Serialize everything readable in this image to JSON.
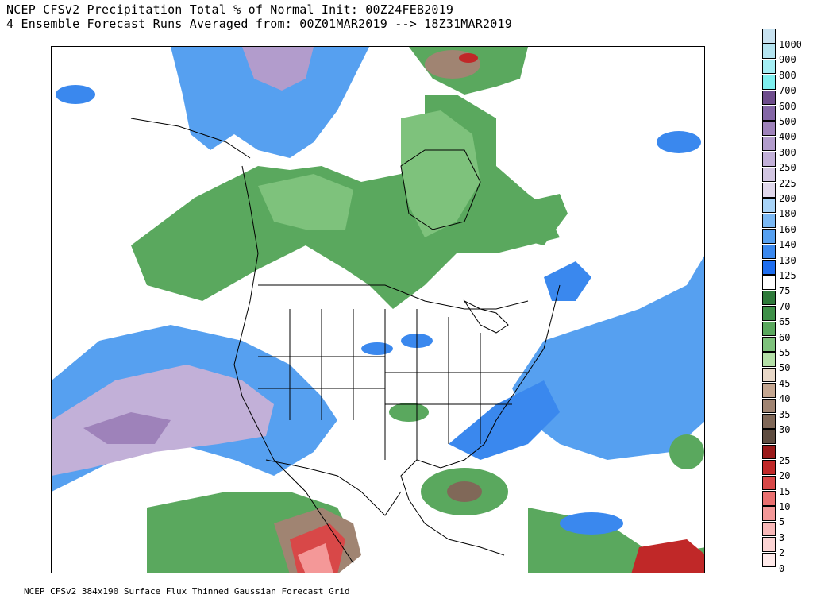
{
  "header": {
    "title_line1": "NCEP CFSv2 Precipitation Total % of Normal Init: 00Z24FEB2019",
    "title_line2": "4 Ensemble Forecast Runs Averaged from: 00Z01MAR2019 --> 18Z31MAR2019"
  },
  "footer": {
    "text": "NCEP CFSv2 384x190 Surface Flux Thinned Gaussian Forecast Grid"
  },
  "colorbar": {
    "levels": [
      {
        "label": "1000",
        "color": "#c8e2f0"
      },
      {
        "label": "900",
        "color": "#b4e4f0"
      },
      {
        "label": "800",
        "color": "#a4eef4"
      },
      {
        "label": "700",
        "color": "#7ef0f0"
      },
      {
        "label": "600",
        "color": "#6e4c8c"
      },
      {
        "label": "500",
        "color": "#8466a6"
      },
      {
        "label": "400",
        "color": "#9e82ba"
      },
      {
        "label": "300",
        "color": "#b29ccc"
      },
      {
        "label": "250",
        "color": "#c2b0d8"
      },
      {
        "label": "225",
        "color": "#d2c6e2"
      },
      {
        "label": "200",
        "color": "#e0d8ec"
      },
      {
        "label": "180",
        "color": "#a8d4f8"
      },
      {
        "label": "160",
        "color": "#7ab8f4"
      },
      {
        "label": "140",
        "color": "#56a0f0"
      },
      {
        "label": "130",
        "color": "#3a88ee"
      },
      {
        "label": "125",
        "color": "#1e6ef0"
      },
      {
        "label": "75",
        "color": "#ffffff"
      },
      {
        "label": "70",
        "color": "#2e7a3a"
      },
      {
        "label": "65",
        "color": "#3e9048"
      },
      {
        "label": "60",
        "color": "#5aa85e"
      },
      {
        "label": "55",
        "color": "#7ec27c"
      },
      {
        "label": "50",
        "color": "#b4e0a8"
      },
      {
        "label": "45",
        "color": "#e8d8c8"
      },
      {
        "label": "40",
        "color": "#c4a690"
      },
      {
        "label": "35",
        "color": "#a08472"
      },
      {
        "label": "30",
        "color": "#806858"
      },
      {
        "label": "",
        "color": "#5e4c40"
      },
      {
        "label": "25",
        "color": "#9a1a1a"
      },
      {
        "label": "20",
        "color": "#c02828"
      },
      {
        "label": "15",
        "color": "#d84848"
      },
      {
        "label": "10",
        "color": "#ea7070"
      },
      {
        "label": "5",
        "color": "#f49898"
      },
      {
        "label": "3",
        "color": "#f8b8b8"
      },
      {
        "label": "2",
        "color": "#fcd4d4"
      },
      {
        "label": "0",
        "color": "#ffeaea"
      }
    ]
  },
  "map_colors": {
    "green_dark": "#3e9048",
    "green_mid": "#5aa85e",
    "green_light": "#7ec27c",
    "green_pale": "#b4e0a8",
    "blue_bright": "#3a88ee",
    "blue_mid": "#56a0f0",
    "blue_light": "#7ab8f4",
    "lilac": "#b29ccc",
    "purple": "#9e82ba",
    "brown": "#a08472",
    "brown_dark": "#5e4c40",
    "red": "#c02828",
    "pink": "#f49898",
    "lines": "#000000"
  }
}
